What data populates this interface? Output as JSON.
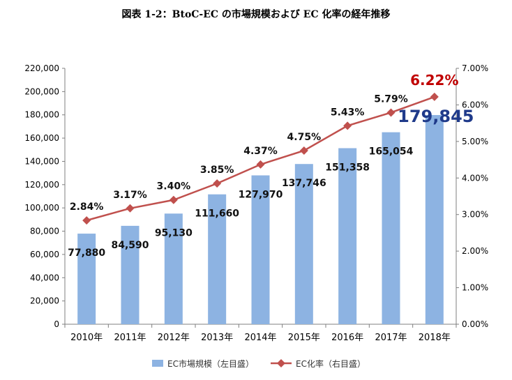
{
  "title": "図表 1-2：BtoC-EC の市場規模および EC 化率の経年推移",
  "chart_data": {
    "type": "bar+line",
    "categories": [
      "2010年",
      "2011年",
      "2012年",
      "2013年",
      "2014年",
      "2015年",
      "2016年",
      "2017年",
      "2018年"
    ],
    "series": [
      {
        "name": "EC市場規模（左目盛）",
        "type": "bar",
        "axis": "left",
        "values": [
          77880,
          84590,
          95130,
          111660,
          127970,
          137746,
          151358,
          165054,
          179845
        ],
        "labels": [
          "77,880",
          "84,590",
          "95,130",
          "111,660",
          "127,970",
          "137,746",
          "151,358",
          "165,054",
          "179,845"
        ],
        "color": "#8db3e2"
      },
      {
        "name": "EC化率（右目盛）",
        "type": "line",
        "axis": "right",
        "values": [
          2.84,
          3.17,
          3.4,
          3.85,
          4.37,
          4.75,
          5.43,
          5.79,
          6.22
        ],
        "labels": [
          "2.84%",
          "3.17%",
          "3.40%",
          "3.85%",
          "4.37%",
          "4.75%",
          "5.43%",
          "5.79%",
          "6.22%"
        ],
        "color": "#c0504d"
      }
    ],
    "y_left": {
      "min": 0,
      "max": 220000,
      "step": 20000,
      "ticks": [
        "0",
        "20,000",
        "40,000",
        "60,000",
        "80,000",
        "100,000",
        "120,000",
        "140,000",
        "160,000",
        "180,000",
        "200,000",
        "220,000"
      ]
    },
    "y_right": {
      "min": 0,
      "max": 7,
      "step": 1,
      "ticks": [
        "0.00%",
        "1.00%",
        "2.00%",
        "3.00%",
        "4.00%",
        "5.00%",
        "6.00%",
        "7.00%"
      ]
    },
    "grid": false,
    "legend_position": "bottom",
    "highlight_color_bar_label": "#1f3a8a",
    "highlight_color_line_label": "#c00000"
  }
}
